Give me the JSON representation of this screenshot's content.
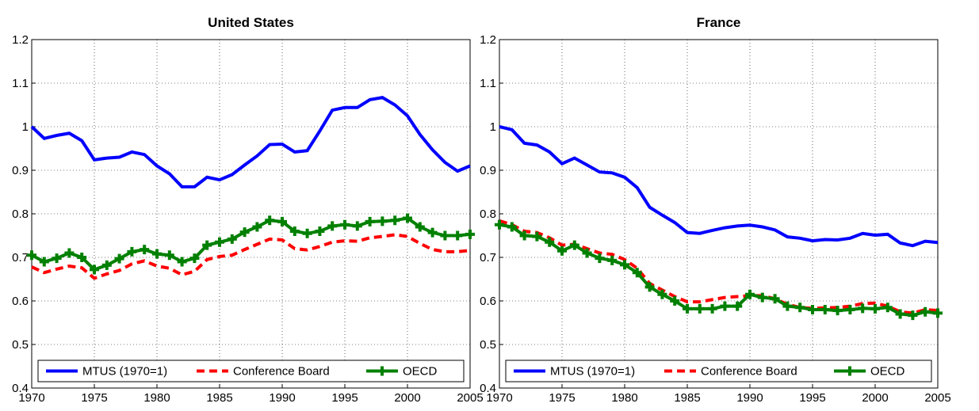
{
  "chart_data": [
    {
      "type": "line",
      "title": "United States",
      "x": [
        1970,
        1971,
        1972,
        1973,
        1974,
        1975,
        1976,
        1977,
        1978,
        1979,
        1980,
        1981,
        1982,
        1983,
        1984,
        1985,
        1986,
        1987,
        1988,
        1989,
        1990,
        1991,
        1992,
        1993,
        1994,
        1995,
        1996,
        1997,
        1998,
        1999,
        2000,
        2001,
        2002,
        2003,
        2004,
        2005
      ],
      "series": [
        {
          "name": "MTUS (1970=1)",
          "color": "#0000ff",
          "linestyle": "solid",
          "values": [
            1.0,
            0.973,
            0.98,
            0.985,
            0.968,
            0.924,
            0.928,
            0.93,
            0.942,
            0.936,
            0.91,
            0.892,
            0.862,
            0.862,
            0.884,
            0.878,
            0.89,
            0.912,
            0.933,
            0.959,
            0.96,
            0.942,
            0.945,
            0.99,
            1.038,
            1.044,
            1.044,
            1.062,
            1.067,
            1.05,
            1.025,
            0.982,
            0.947,
            0.918,
            0.898,
            0.91
          ]
        },
        {
          "name": "Conference Board",
          "color": "#ff0000",
          "linestyle": "dashed",
          "values": [
            0.678,
            0.665,
            0.673,
            0.68,
            0.676,
            0.652,
            0.662,
            0.67,
            0.685,
            0.692,
            0.68,
            0.675,
            0.66,
            0.668,
            0.695,
            0.702,
            0.705,
            0.718,
            0.73,
            0.742,
            0.74,
            0.72,
            0.717,
            0.725,
            0.735,
            0.738,
            0.737,
            0.745,
            0.748,
            0.752,
            0.748,
            0.732,
            0.718,
            0.713,
            0.713,
            0.716
          ]
        },
        {
          "name": "OECD",
          "color": "#008000",
          "linestyle": "solid",
          "marker": "plus",
          "values": [
            0.705,
            0.69,
            0.698,
            0.71,
            0.7,
            0.672,
            0.682,
            0.697,
            0.713,
            0.718,
            0.708,
            0.705,
            0.69,
            0.698,
            0.728,
            0.735,
            0.742,
            0.758,
            0.77,
            0.785,
            0.782,
            0.76,
            0.755,
            0.76,
            0.772,
            0.775,
            0.772,
            0.782,
            0.783,
            0.785,
            0.79,
            0.77,
            0.757,
            0.75,
            0.75,
            0.753
          ]
        }
      ],
      "xlim": [
        1970,
        2005
      ],
      "xticks": [
        1970,
        1975,
        1980,
        1985,
        1990,
        1995,
        2000,
        2005
      ],
      "ylim": [
        0.4,
        1.2
      ],
      "yticks": [
        0.4,
        0.5,
        0.6,
        0.7,
        0.8,
        0.9,
        1,
        1.1,
        1.2
      ],
      "grid": true,
      "legend": "lower center"
    },
    {
      "type": "line",
      "title": "France",
      "x": [
        1970,
        1971,
        1972,
        1973,
        1974,
        1975,
        1976,
        1977,
        1978,
        1979,
        1980,
        1981,
        1982,
        1983,
        1984,
        1985,
        1986,
        1987,
        1988,
        1989,
        1990,
        1991,
        1992,
        1993,
        1994,
        1995,
        1996,
        1997,
        1998,
        1999,
        2000,
        2001,
        2002,
        2003,
        2004,
        2005
      ],
      "series": [
        {
          "name": "MTUS (1970=1)",
          "color": "#0000ff",
          "linestyle": "solid",
          "values": [
            1.0,
            0.993,
            0.962,
            0.958,
            0.942,
            0.915,
            0.928,
            0.912,
            0.896,
            0.894,
            0.884,
            0.86,
            0.815,
            0.797,
            0.78,
            0.757,
            0.755,
            0.762,
            0.768,
            0.772,
            0.774,
            0.77,
            0.763,
            0.747,
            0.744,
            0.738,
            0.741,
            0.74,
            0.744,
            0.755,
            0.751,
            0.753,
            0.733,
            0.727,
            0.737,
            0.734
          ]
        },
        {
          "name": "Conference Board",
          "color": "#ff0000",
          "linestyle": "dashed",
          "values": [
            0.784,
            0.775,
            0.76,
            0.757,
            0.745,
            0.728,
            0.73,
            0.72,
            0.71,
            0.707,
            0.695,
            0.675,
            0.64,
            0.625,
            0.61,
            0.598,
            0.598,
            0.603,
            0.608,
            0.61,
            0.612,
            0.612,
            0.605,
            0.592,
            0.585,
            0.583,
            0.584,
            0.585,
            0.588,
            0.594,
            0.595,
            0.588,
            0.575,
            0.572,
            0.58,
            0.578
          ]
        },
        {
          "name": "OECD",
          "color": "#008000",
          "linestyle": "solid",
          "marker": "plus",
          "values": [
            0.775,
            0.77,
            0.75,
            0.748,
            0.735,
            0.715,
            0.728,
            0.71,
            0.698,
            0.693,
            0.683,
            0.665,
            0.632,
            0.615,
            0.6,
            0.582,
            0.582,
            0.582,
            0.588,
            0.588,
            0.615,
            0.608,
            0.605,
            0.588,
            0.585,
            0.58,
            0.58,
            0.578,
            0.58,
            0.583,
            0.582,
            0.585,
            0.57,
            0.567,
            0.575,
            0.572
          ]
        }
      ],
      "xlim": [
        1970,
        2005
      ],
      "xticks": [
        1970,
        1975,
        1980,
        1985,
        1990,
        1995,
        2000,
        2005
      ],
      "ylim": [
        0.4,
        1.2
      ],
      "yticks": [
        0.4,
        0.5,
        0.6,
        0.7,
        0.8,
        0.9,
        1,
        1.1,
        1.2
      ],
      "grid": true,
      "legend": "lower center"
    }
  ]
}
